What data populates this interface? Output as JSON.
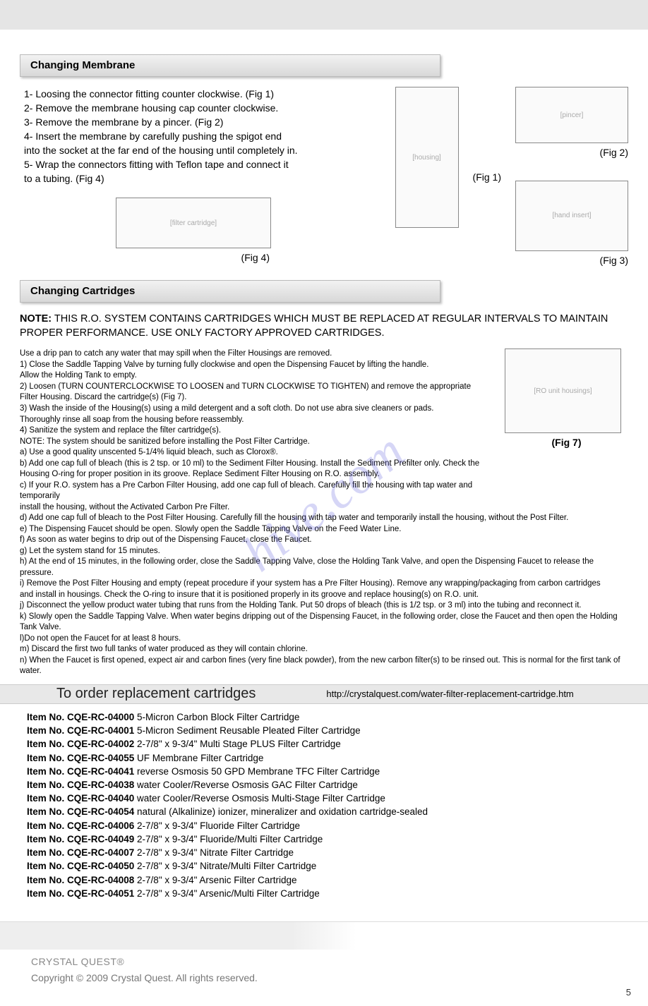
{
  "watermark_text": "hive.com",
  "page_number": "5",
  "top_bar_color": "#e5e5e5",
  "sections": {
    "membrane": {
      "title": "Changing Membrane",
      "steps": [
        "1- Loosing the connector fitting counter clockwise. (Fig 1)",
        "2- Remove the membrane housing cap counter clockwise.",
        "3- Remove the membrane by a pincer. (Fig 2)",
        "4- Insert the membrane by carefully pushing the spigot end",
        " into the socket at the far end of the housing until completely in.",
        "5- Wrap the connectors fitting with Teflon tape and connect it",
        " to a tubing. (Fig 4)"
      ],
      "fig1": "(Fig 1)",
      "fig2": "(Fig 2)",
      "fig3": "(Fig 3)",
      "fig4": "(Fig 4)"
    },
    "cartridges": {
      "title": "Changing Cartridges",
      "note_label": "NOTE:",
      "note_text": "THIS R.O. SYSTEM CONTAINS CARTRIDGES WHICH MUST BE REPLACED AT REGULAR INTERVALS TO MAINTAIN PROPER PERFORMANCE.  USE ONLY FACTORY APPROVED CARTRIDGES.",
      "lines": [
        "Use a drip pan to catch any water that may spill when the Filter Housings are removed.",
        "1) Close the Saddle Tapping Valve by turning fully clockwise and open the Dispensing Faucet by lifting the handle.",
        "Allow the Holding Tank to empty.",
        "2) Loosen (TURN COUNTERCLOCKWISE TO LOOSEN and TURN CLOCKWISE TO TIGHTEN) and remove the appropriate",
        "Filter Housing. Discard the cartridge(s) (Fig 7).",
        "3) Wash the inside of the Housing(s) using a mild detergent and a soft cloth. Do not use abra sive cleaners or pads.",
        "Thoroughly rinse all soap from the housing before reassembly.",
        "4)  Sanitize the system and replace the filter cartridge(s).",
        "NOTE: The system should be sanitized before installing the Post Filter Cartridge.",
        "a) Use a good quality unscented 5-1/4% liquid bleach, such as Clorox®.",
        "b) Add one cap full of bleach (this is 2 tsp. or 10 ml) to the Sediment Filter Housing. Install the Sediment Prefilter only.  Check the",
        "Housing O-ring for proper position in its groove. Replace Sediment Filter Housing on R.O. assembly.",
        "c) If your R.O. system has a Pre Carbon Filter Housing, add one cap full of bleach.  Carefully fill the housing with tap water and temporarily",
        "install the housing, without the Activated Carbon Pre Filter."
      ],
      "lines_full": [
        "d) Add one cap full of bleach to the  Post Filter Housing.  Carefully fill the housing with tap water and temporarily install the housing, without the Post Filter.",
        "e) The Dispensing Faucet should be open. Slowly open the Saddle Tapping Valve on the Feed Water Line.",
        "f) As soon as water begins to drip out of the Dispensing Faucet, close the Faucet.",
        "g) Let the system stand for 15 minutes.",
        "h) At the end of 15 minutes, in the following order, close the Saddle Tapping Valve, close the Holding Tank Valve, and open the Dispensing Faucet to release the pressure.",
        "i) Remove the Post Filter Housing and empty (repeat procedure if your system has a Pre Filter Housing).  Remove any wrapping/packaging from carbon cartridges",
        "and install in housings.  Check the O-ring to insure that it is positioned properly in its groove and replace housing(s) on R.O. unit.",
        "j) Disconnect the yellow product water tubing that runs from the Holding Tank.  Put 50 drops of bleach (this is 1/2 tsp. or 3 ml) into the tubing and reconnect it.",
        "k) Slowly open the Saddle Tapping Valve. When water begins dripping out of the Dispensing Faucet, in the following order, close the Faucet and then open the Holding Tank Valve.",
        "l)Do not open the Faucet for at least 8 hours.",
        "m) Discard the first two full tanks of water produced as they will contain chlorine.",
        "n) When the Faucet is first opened, expect air and carbon fines (very fine black powder), from the new carbon filter(s) to be rinsed out. This is normal for the first tank of water."
      ],
      "fig7": "(Fig 7)"
    }
  },
  "order": {
    "title": "To order replacement cartridges",
    "url": "http://crystalquest.com/water-filter-replacement-cartridge.htm",
    "item_prefix": "Item No. ",
    "items": [
      {
        "num": "CQE-RC-04000",
        "desc": "  5-Micron Carbon Block Filter Cartridge"
      },
      {
        "num": "CQE-RC-04001",
        "desc": "  5-Micron Sediment Reusable Pleated Filter Cartridge"
      },
      {
        "num": "CQE-RC-04002",
        "desc": " 2-7/8\" x 9-3/4\" Multi Stage PLUS Filter Cartridge"
      },
      {
        "num": "CQE-RC-04055",
        "desc": " UF Membrane Filter Cartridge"
      },
      {
        "num": "CQE-RC-04041",
        "desc": " reverse Osmosis 50 GPD Membrane TFC Filter Cartridge"
      },
      {
        "num": "CQE-RC-04038",
        "desc": " water Cooler/Reverse Osmosis GAC Filter Cartridge"
      },
      {
        "num": "CQE-RC-04040",
        "desc": " water Cooler/Reverse Osmosis Multi-Stage Filter Cartridge"
      },
      {
        "num": "CQE-RC-04054",
        "desc": " natural (Alkalinize) ionizer, mineralizer and oxidation cartridge-sealed"
      },
      {
        "num": "CQE-RC-04006",
        "desc": " 2-7/8\" x 9-3/4\" Fluoride Filter Cartridge"
      },
      {
        "num": "CQE-RC-04049",
        "desc": " 2-7/8\" x 9-3/4\" Fluoride/Multi Filter Cartridge"
      },
      {
        "num": "CQE-RC-04007",
        "desc": " 2-7/8\" x 9-3/4\" Nitrate Filter Cartridge"
      },
      {
        "num": "CQE-RC-04050",
        "desc": " 2-7/8\" x 9-3/4\" Nitrate/Multi Filter Cartridge"
      },
      {
        "num": "CQE-RC-04008",
        "desc": " 2-7/8\" x 9-3/4\" Arsenic Filter Cartridge"
      },
      {
        "num": "CQE-RC-04051",
        "desc": " 2-7/8\" x 9-3/4\" Arsenic/Multi Filter Cartridge"
      }
    ]
  },
  "footer": {
    "brand": "CRYSTAL QUEST®",
    "copyright": "Copyright © 2009 Crystal Quest. All rights reserved."
  }
}
